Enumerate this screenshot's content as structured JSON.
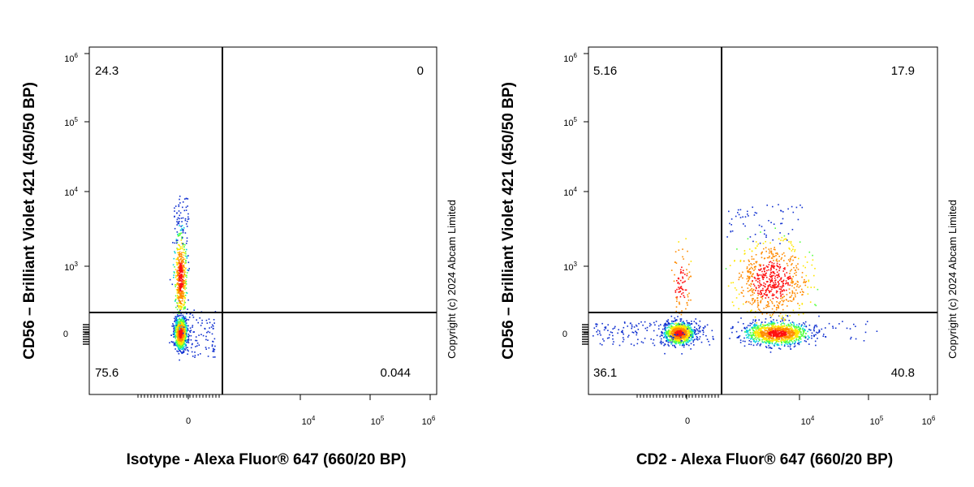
{
  "chart_data": [
    {
      "type": "scatter",
      "subtype": "flow-cytometry-density-dot-plot",
      "xlabel": "Isotype - Alexa Fluor® 647 (660/20 BP)",
      "ylabel": "CD56 – Brilliant Violet 421 (450/50 BP)",
      "x_scale": "biexponential",
      "y_scale": "biexponential",
      "x_ticks": [
        "0",
        "10^4",
        "10^5",
        "10^6"
      ],
      "y_ticks": [
        "0",
        "10^3",
        "10^4",
        "10^5",
        "10^6"
      ],
      "quadrants": {
        "top_left": "24.3",
        "top_right": "0",
        "bottom_left": "75.6",
        "bottom_right": "0.044"
      },
      "copyright": "Copyright (c) 2024 Abcam Limited",
      "gate_x": 900,
      "gate_y": 250,
      "populations": [
        {
          "x": 0,
          "y": 0,
          "density": "high"
        },
        {
          "x": 0,
          "y": 900,
          "density": "medium"
        }
      ]
    },
    {
      "type": "scatter",
      "subtype": "flow-cytometry-density-dot-plot",
      "xlabel": "CD2 - Alexa Fluor® 647 (660/20 BP)",
      "ylabel": "CD56 – Brilliant Violet 421 (450/50 BP)",
      "x_scale": "biexponential",
      "y_scale": "biexponential",
      "x_ticks": [
        "0",
        "10^4",
        "10^5",
        "10^6"
      ],
      "y_ticks": [
        "0",
        "10^3",
        "10^4",
        "10^5",
        "10^6"
      ],
      "quadrants": {
        "top_left": "5.16",
        "top_right": "17.9",
        "bottom_left": "36.1",
        "bottom_right": "40.8"
      },
      "copyright": "Copyright (c) 2024 Abcam Limited",
      "gate_x": 900,
      "gate_y": 250,
      "populations": [
        {
          "x": 0,
          "y": 0,
          "density": "high"
        },
        {
          "x": 5000,
          "y": 0,
          "density": "high"
        },
        {
          "x": 5000,
          "y": 900,
          "density": "medium"
        },
        {
          "x": 0,
          "y": 900,
          "density": "low"
        }
      ]
    }
  ]
}
